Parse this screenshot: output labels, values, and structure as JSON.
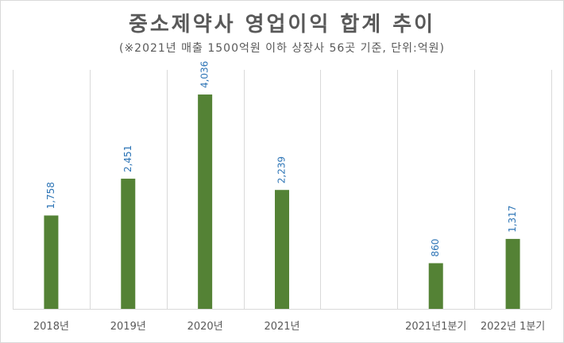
{
  "chart_data": {
    "type": "bar",
    "title": "중소제약사 영업이익 합계 추이",
    "subtitle": "(※2021년 매출 1500억원 이하 상장사 56곳 기준, 단위:억원)",
    "categories": [
      "2018년",
      "2019년",
      "2020년",
      "2021년",
      "",
      "2021년1분기",
      "2022년 1분기"
    ],
    "values": [
      1758,
      2451,
      4036,
      2239,
      null,
      860,
      1317
    ],
    "value_labels": [
      "1,758",
      "2,451",
      "4,036",
      "2,239",
      "",
      "860",
      "1,317"
    ],
    "ylim": [
      0,
      4500
    ],
    "grid": "vertical category separators",
    "legend": "none",
    "colors": {
      "bar": "#548235",
      "data_label": "#2e75b6",
      "text": "#595959",
      "grid": "#d9d9d9"
    }
  }
}
